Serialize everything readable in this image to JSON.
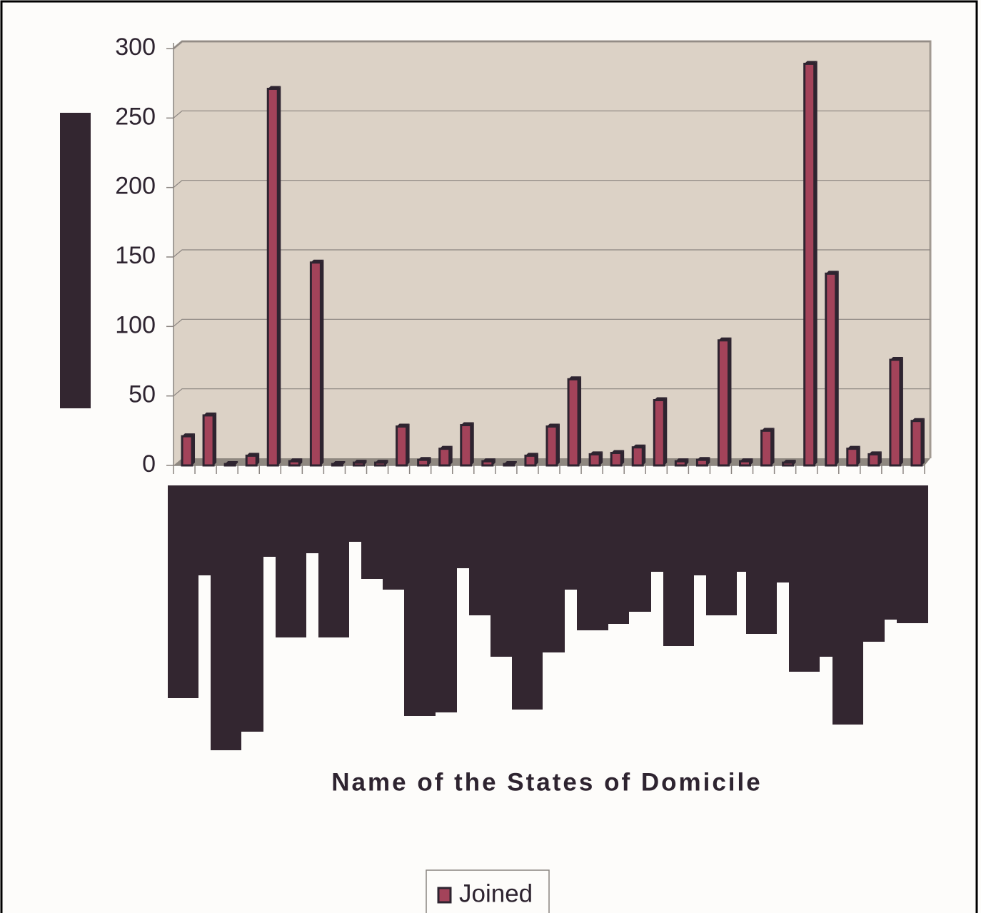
{
  "chart_data": {
    "type": "bar",
    "categories": [
      null,
      null,
      null,
      null,
      null,
      null,
      null,
      null,
      null,
      null,
      null,
      null,
      null,
      null,
      null,
      null,
      null,
      null,
      null,
      null,
      null,
      null,
      null,
      null,
      null,
      null,
      null,
      null,
      null,
      null,
      null,
      null,
      null,
      null,
      null
    ],
    "series": [
      {
        "name": "Joined",
        "color": "#a3435a",
        "values": [
          21,
          36,
          1,
          7,
          271,
          3,
          146,
          1,
          2,
          2,
          28,
          4,
          12,
          29,
          3,
          1,
          7,
          28,
          62,
          8,
          9,
          13,
          47,
          3,
          4,
          90,
          3,
          25,
          2,
          289,
          138,
          12,
          8,
          76,
          32
        ]
      }
    ],
    "x_label": "Name of the States of Domicile",
    "ylim": [
      0,
      300
    ],
    "yticks": [
      0,
      50,
      100,
      150,
      200,
      250,
      300
    ],
    "grid": true,
    "legend": "bottom"
  }
}
